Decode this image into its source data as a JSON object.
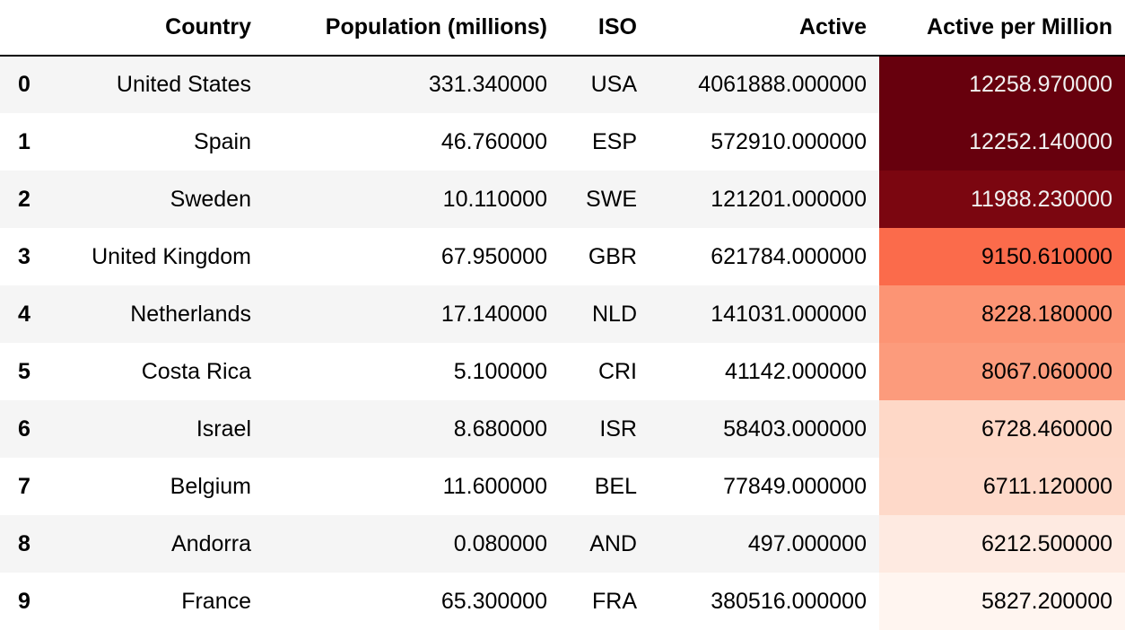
{
  "table": {
    "columns": [
      "",
      "Country",
      "Population (millions)",
      "ISO",
      "Active",
      "Active per Million"
    ],
    "rows": [
      {
        "index": "0",
        "country": "United States",
        "population": "331.340000",
        "iso": "USA",
        "active": "4061888.000000",
        "apm": "12258.970000",
        "apm_bg": "#67000d",
        "apm_fg": "#f1f1f1"
      },
      {
        "index": "1",
        "country": "Spain",
        "population": "46.760000",
        "iso": "ESP",
        "active": "572910.000000",
        "apm": "12252.140000",
        "apm_bg": "#67000d",
        "apm_fg": "#f1f1f1"
      },
      {
        "index": "2",
        "country": "Sweden",
        "population": "10.110000",
        "iso": "SWE",
        "active": "121201.000000",
        "apm": "11988.230000",
        "apm_bg": "#7b0610",
        "apm_fg": "#f1f1f1"
      },
      {
        "index": "3",
        "country": "United Kingdom",
        "population": "67.950000",
        "iso": "GBR",
        "active": "621784.000000",
        "apm": "9150.610000",
        "apm_bg": "#fb6b4b",
        "apm_fg": "#000000"
      },
      {
        "index": "4",
        "country": "Netherlands",
        "population": "17.140000",
        "iso": "NLD",
        "active": "141031.000000",
        "apm": "8228.180000",
        "apm_bg": "#fc9474",
        "apm_fg": "#000000"
      },
      {
        "index": "5",
        "country": "Costa Rica",
        "population": "5.100000",
        "iso": "CRI",
        "active": "41142.000000",
        "apm": "8067.060000",
        "apm_bg": "#fc9b7c",
        "apm_fg": "#000000"
      },
      {
        "index": "6",
        "country": "Israel",
        "population": "8.680000",
        "iso": "ISR",
        "active": "58403.000000",
        "apm": "6728.460000",
        "apm_bg": "#fed8c7",
        "apm_fg": "#000000"
      },
      {
        "index": "7",
        "country": "Belgium",
        "population": "11.600000",
        "iso": "BEL",
        "active": "77849.000000",
        "apm": "6711.120000",
        "apm_bg": "#fed9c9",
        "apm_fg": "#000000"
      },
      {
        "index": "8",
        "country": "Andorra",
        "population": "0.080000",
        "iso": "AND",
        "active": "497.000000",
        "apm": "6212.500000",
        "apm_bg": "#feeae1",
        "apm_fg": "#000000"
      },
      {
        "index": "9",
        "country": "France",
        "population": "65.300000",
        "iso": "FRA",
        "active": "380516.000000",
        "apm": "5827.200000",
        "apm_bg": "#fff5f0",
        "apm_fg": "#000000"
      }
    ]
  }
}
